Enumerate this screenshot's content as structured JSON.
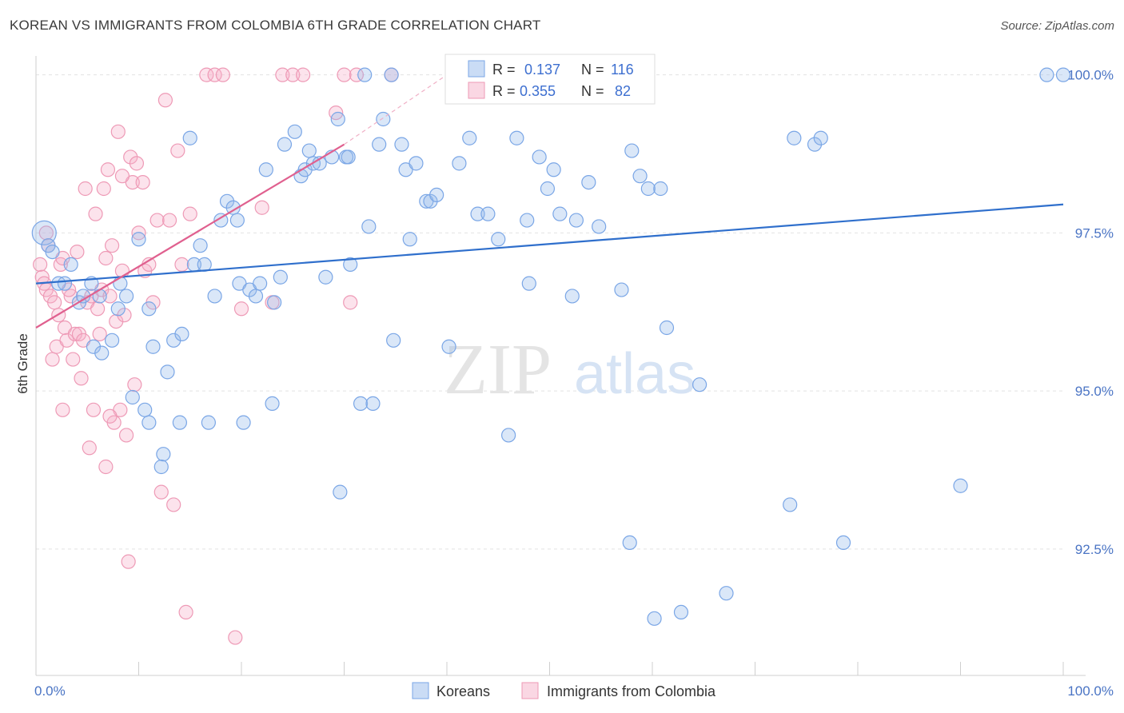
{
  "title": "KOREAN VS IMMIGRANTS FROM COLOMBIA 6TH GRADE CORRELATION CHART",
  "source": "Source: ZipAtlas.com",
  "watermark": {
    "zip": "ZIP",
    "atlas": "atlas"
  },
  "colors": {
    "blue": "#7aa6e6",
    "blue_fill": "rgba(150,185,235,0.35)",
    "blue_line": "#2f6fcc",
    "pink": "#ee9ab6",
    "pink_fill": "rgba(245,175,200,0.35)",
    "pink_line": "#e0608f"
  },
  "chart_data": {
    "type": "scatter",
    "title": "KOREAN VS IMMIGRANTS FROM COLOMBIA 6TH GRADE CORRELATION CHART",
    "xlabel": "",
    "ylabel": "6th Grade",
    "xlim": [
      0,
      100
    ],
    "ylim": [
      90.5,
      100.4
    ],
    "x_tick_labels": [
      "0.0%",
      "100.0%"
    ],
    "y_ticks": [
      92.5,
      95.0,
      97.5,
      100.0
    ],
    "y_tick_labels": [
      "92.5%",
      "95.0%",
      "97.5%",
      "100.0%"
    ],
    "grid": true,
    "legend": {
      "placement": "top-center",
      "rows": [
        {
          "r_label": "R =",
          "r_value": "0.137",
          "n_label": "N =",
          "n_value": "116"
        },
        {
          "r_label": "R =",
          "r_value": "0.355",
          "n_label": "N =",
          "n_value": "82"
        }
      ]
    },
    "series": [
      {
        "name": "Koreans",
        "trend": {
          "x": [
            0,
            100
          ],
          "y": [
            96.7,
            97.95
          ]
        },
        "points": [
          [
            0.8,
            97.5
          ],
          [
            1.2,
            97.3
          ],
          [
            1.6,
            97.2
          ],
          [
            2.2,
            96.7
          ],
          [
            2.8,
            96.7
          ],
          [
            3.4,
            97.0
          ],
          [
            4.2,
            96.4
          ],
          [
            4.6,
            96.5
          ],
          [
            5.4,
            96.7
          ],
          [
            5.6,
            95.7
          ],
          [
            6.2,
            96.5
          ],
          [
            6.4,
            95.6
          ],
          [
            7.4,
            95.8
          ],
          [
            8.0,
            96.3
          ],
          [
            8.2,
            96.7
          ],
          [
            8.8,
            96.5
          ],
          [
            9.4,
            94.9
          ],
          [
            10.0,
            97.4
          ],
          [
            10.6,
            94.7
          ],
          [
            11.0,
            96.3
          ],
          [
            11.4,
            95.7
          ],
          [
            12.2,
            93.8
          ],
          [
            12.4,
            94.0
          ],
          [
            12.8,
            95.3
          ],
          [
            13.4,
            95.8
          ],
          [
            14.0,
            94.5
          ],
          [
            14.2,
            95.9
          ],
          [
            15.0,
            99.0
          ],
          [
            15.4,
            97.0
          ],
          [
            16.0,
            97.3
          ],
          [
            16.4,
            97.0
          ],
          [
            16.8,
            94.5
          ],
          [
            17.4,
            96.5
          ],
          [
            18.0,
            97.7
          ],
          [
            18.6,
            98.0
          ],
          [
            19.2,
            97.9
          ],
          [
            19.6,
            97.7
          ],
          [
            19.8,
            96.7
          ],
          [
            20.2,
            94.5
          ],
          [
            20.8,
            96.6
          ],
          [
            21.4,
            96.5
          ],
          [
            21.8,
            96.7
          ],
          [
            22.4,
            98.5
          ],
          [
            23.0,
            94.8
          ],
          [
            23.2,
            96.4
          ],
          [
            23.8,
            96.8
          ],
          [
            24.2,
            98.9
          ],
          [
            25.2,
            99.1
          ],
          [
            25.8,
            98.4
          ],
          [
            26.2,
            98.5
          ],
          [
            26.6,
            98.8
          ],
          [
            27.0,
            98.6
          ],
          [
            27.6,
            98.6
          ],
          [
            28.2,
            96.8
          ],
          [
            28.8,
            98.7
          ],
          [
            29.4,
            99.3
          ],
          [
            29.6,
            93.4
          ],
          [
            30.2,
            98.7
          ],
          [
            30.6,
            97.0
          ],
          [
            31.6,
            94.8
          ],
          [
            32.0,
            100.0
          ],
          [
            32.4,
            97.6
          ],
          [
            32.8,
            94.8
          ],
          [
            33.4,
            98.9
          ],
          [
            33.8,
            99.3
          ],
          [
            34.6,
            100.0
          ],
          [
            34.8,
            95.8
          ],
          [
            35.6,
            98.9
          ],
          [
            36.0,
            98.5
          ],
          [
            36.4,
            97.4
          ],
          [
            37.0,
            98.6
          ],
          [
            38.0,
            98.0
          ],
          [
            38.4,
            98.0
          ],
          [
            39.0,
            98.1
          ],
          [
            40.2,
            95.7
          ],
          [
            40.6,
            100.0
          ],
          [
            41.2,
            98.6
          ],
          [
            42.2,
            99.0
          ],
          [
            43.0,
            97.8
          ],
          [
            44.0,
            97.8
          ],
          [
            45.0,
            97.4
          ],
          [
            46.0,
            94.3
          ],
          [
            47.2,
            99.7
          ],
          [
            47.8,
            97.7
          ],
          [
            48.0,
            96.7
          ],
          [
            49.0,
            98.7
          ],
          [
            49.8,
            98.2
          ],
          [
            50.4,
            98.5
          ],
          [
            51.0,
            97.8
          ],
          [
            52.2,
            96.5
          ],
          [
            52.6,
            97.7
          ],
          [
            53.8,
            98.3
          ],
          [
            54.8,
            97.6
          ],
          [
            56.2,
            100.0
          ],
          [
            57.0,
            96.6
          ],
          [
            57.8,
            92.6
          ],
          [
            58.0,
            98.8
          ],
          [
            58.8,
            98.4
          ],
          [
            59.6,
            98.2
          ],
          [
            60.8,
            98.2
          ],
          [
            61.4,
            96.0
          ],
          [
            62.8,
            91.5
          ],
          [
            64.6,
            95.1
          ],
          [
            67.2,
            91.8
          ],
          [
            73.4,
            93.2
          ],
          [
            73.8,
            99.0
          ],
          [
            75.8,
            98.9
          ],
          [
            76.4,
            99.0
          ],
          [
            78.6,
            92.6
          ],
          [
            90.0,
            93.5
          ],
          [
            98.4,
            100.0
          ],
          [
            100.0,
            100.0
          ],
          [
            11.0,
            94.5
          ],
          [
            30.4,
            98.7
          ],
          [
            46.8,
            99.0
          ],
          [
            60.2,
            91.4
          ]
        ],
        "big_points": [
          [
            0.8,
            97.5
          ]
        ]
      },
      {
        "name": "Immigrants from Colombia",
        "trend": {
          "x": [
            0,
            30
          ],
          "y": [
            96.0,
            98.9
          ]
        },
        "trend_dashed": {
          "x": [
            30,
            40
          ],
          "y": [
            98.9,
            100.0
          ]
        },
        "points": [
          [
            0.4,
            97.0
          ],
          [
            0.6,
            96.8
          ],
          [
            0.8,
            96.7
          ],
          [
            1.0,
            96.6
          ],
          [
            1.2,
            97.3
          ],
          [
            1.4,
            96.5
          ],
          [
            1.6,
            95.5
          ],
          [
            1.8,
            96.4
          ],
          [
            2.0,
            95.7
          ],
          [
            2.2,
            96.2
          ],
          [
            2.4,
            97.0
          ],
          [
            2.6,
            94.7
          ],
          [
            2.8,
            96.0
          ],
          [
            3.0,
            95.8
          ],
          [
            3.4,
            96.5
          ],
          [
            3.6,
            95.5
          ],
          [
            3.8,
            95.9
          ],
          [
            4.0,
            97.2
          ],
          [
            4.2,
            95.9
          ],
          [
            4.4,
            95.2
          ],
          [
            4.6,
            95.8
          ],
          [
            4.8,
            98.2
          ],
          [
            5.0,
            96.4
          ],
          [
            5.4,
            96.5
          ],
          [
            5.6,
            94.7
          ],
          [
            5.8,
            97.8
          ],
          [
            6.0,
            96.3
          ],
          [
            6.2,
            95.9
          ],
          [
            6.4,
            96.6
          ],
          [
            6.6,
            98.2
          ],
          [
            6.8,
            97.1
          ],
          [
            7.0,
            98.5
          ],
          [
            7.2,
            96.5
          ],
          [
            7.4,
            97.3
          ],
          [
            7.6,
            94.5
          ],
          [
            7.8,
            96.1
          ],
          [
            8.0,
            99.1
          ],
          [
            8.2,
            94.7
          ],
          [
            8.4,
            96.9
          ],
          [
            8.6,
            96.2
          ],
          [
            8.8,
            94.3
          ],
          [
            9.0,
            92.3
          ],
          [
            9.2,
            98.7
          ],
          [
            9.4,
            98.3
          ],
          [
            9.6,
            95.1
          ],
          [
            9.8,
            98.6
          ],
          [
            10.0,
            97.5
          ],
          [
            10.4,
            98.3
          ],
          [
            10.6,
            96.9
          ],
          [
            11.0,
            97.0
          ],
          [
            11.4,
            96.4
          ],
          [
            11.8,
            97.7
          ],
          [
            12.2,
            93.4
          ],
          [
            12.6,
            99.6
          ],
          [
            13.0,
            97.7
          ],
          [
            13.4,
            93.2
          ],
          [
            13.8,
            98.8
          ],
          [
            14.2,
            97.0
          ],
          [
            14.6,
            91.5
          ],
          [
            15.0,
            97.8
          ],
          [
            16.6,
            100.0
          ],
          [
            17.4,
            100.0
          ],
          [
            18.2,
            100.0
          ],
          [
            19.4,
            91.1
          ],
          [
            20.0,
            96.3
          ],
          [
            22.0,
            97.9
          ],
          [
            23.0,
            96.4
          ],
          [
            24.0,
            100.0
          ],
          [
            25.0,
            100.0
          ],
          [
            26.0,
            100.0
          ],
          [
            29.2,
            99.4
          ],
          [
            30.0,
            100.0
          ],
          [
            30.6,
            96.4
          ],
          [
            34.6,
            100.0
          ],
          [
            1.0,
            97.5
          ],
          [
            2.6,
            97.1
          ],
          [
            3.2,
            96.6
          ],
          [
            5.2,
            94.1
          ],
          [
            6.8,
            93.8
          ],
          [
            7.2,
            94.6
          ],
          [
            8.4,
            98.4
          ],
          [
            31.2,
            100.0
          ]
        ]
      }
    ]
  },
  "bottom_legend": [
    {
      "label": "Koreans"
    },
    {
      "label": "Immigrants from Colombia"
    }
  ]
}
